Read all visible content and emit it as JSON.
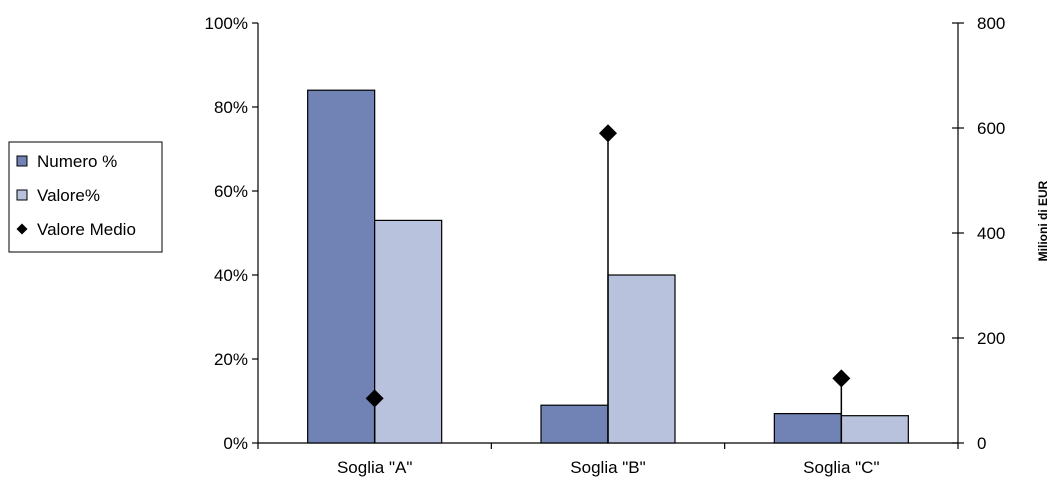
{
  "chart_data": {
    "type": "bar",
    "categories": [
      "Soglia \"A\"",
      "Soglia \"B\"",
      "Soglia \"C\""
    ],
    "series": [
      {
        "name": "Numero %",
        "kind": "bar",
        "axis": "left",
        "color": "#7083b4",
        "values": [
          84,
          9,
          7
        ]
      },
      {
        "name": "Valore%",
        "kind": "bar",
        "axis": "left",
        "color": "#b9c2dc",
        "values": [
          53,
          40,
          6.5
        ]
      },
      {
        "name": "Valore Medio",
        "kind": "marker",
        "marker": "diamond",
        "axis": "right",
        "color": "#000000",
        "values": [
          85,
          590,
          123
        ]
      }
    ],
    "y_left": {
      "min": 0,
      "max": 100,
      "ticks": [
        0,
        20,
        40,
        60,
        80,
        100
      ],
      "tick_labels": [
        "0%",
        "20%",
        "40%",
        "60%",
        "80%",
        "100%"
      ]
    },
    "y_right": {
      "min": 0,
      "max": 800,
      "ticks": [
        0,
        200,
        400,
        600,
        800
      ],
      "tick_labels": [
        "0",
        "200",
        "400",
        "600",
        "800"
      ],
      "label": "Milioni di EUR"
    },
    "legend": {
      "position": "left",
      "entries": [
        "Numero %",
        "Valore%",
        "Valore Medio"
      ]
    },
    "grid": false
  }
}
